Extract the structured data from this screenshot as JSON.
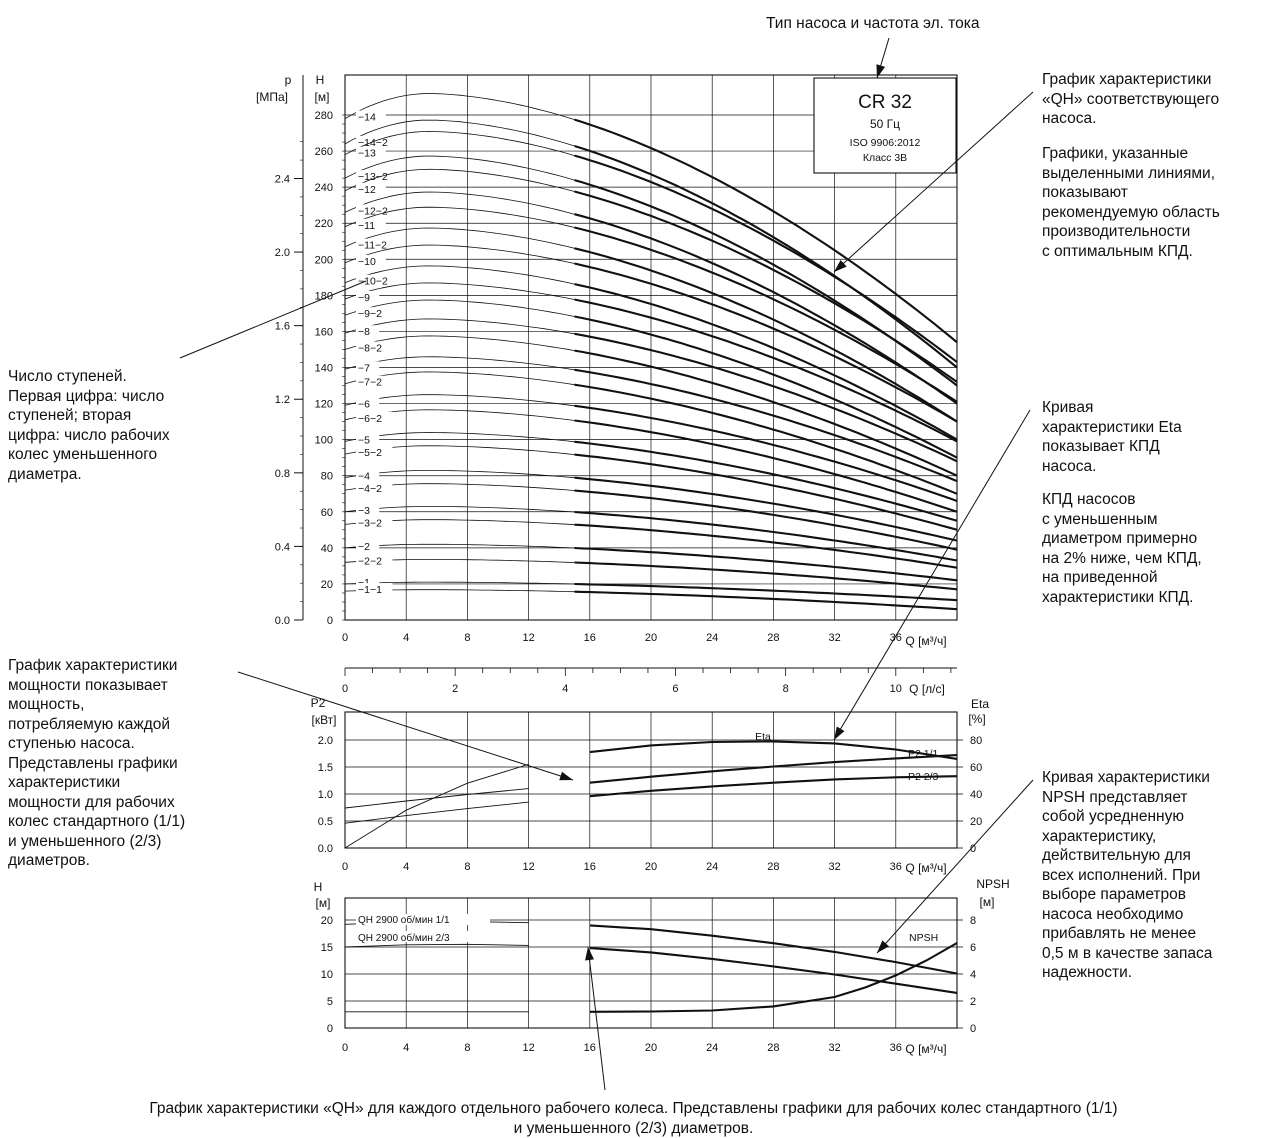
{
  "chart_data": [
    {
      "type": "line",
      "pump_box": {
        "model": "CR 32",
        "freq": "50 Гц",
        "iso": "ISO 9906:2012",
        "class": "Класс 3В"
      },
      "y_left_label": [
        "p",
        "[МПа]"
      ],
      "y_right_label": [
        "H",
        "[м]"
      ],
      "x_label": "Q [м³/ч]",
      "x_label_ls": "Q [л/с]",
      "xlim": [
        0,
        40
      ],
      "ylim": [
        0,
        280
      ],
      "x_ticks": [
        0,
        4,
        8,
        12,
        16,
        20,
        24,
        28,
        32,
        36
      ],
      "h_ticks": [
        0,
        20,
        40,
        60,
        80,
        100,
        120,
        140,
        160,
        180,
        200,
        220,
        240,
        260,
        280
      ],
      "p_ticks": [
        [
          "0.0",
          0
        ],
        [
          "0.4",
          40.8
        ],
        [
          "0.8",
          81.6
        ],
        [
          "1.2",
          122.4
        ],
        [
          "1.6",
          163.2
        ],
        [
          "2.0",
          204
        ],
        [
          "2.4",
          244.8
        ]
      ],
      "ls_ticks": [
        0,
        2,
        4,
        6,
        8,
        10
      ],
      "recommended_range": [
        15,
        40
      ],
      "series": [
        {
          "name": "−14",
          "shutoff": 278,
          "end": 154
        },
        {
          "name": "−14−2",
          "shutoff": 264,
          "end": 140
        },
        {
          "name": "−13",
          "shutoff": 258,
          "end": 143
        },
        {
          "name": "−13−2",
          "shutoff": 245,
          "end": 130
        },
        {
          "name": "−12",
          "shutoff": 238,
          "end": 132
        },
        {
          "name": "−12−2",
          "shutoff": 226,
          "end": 120
        },
        {
          "name": "−11",
          "shutoff": 218,
          "end": 121
        },
        {
          "name": "−11−2",
          "shutoff": 207,
          "end": 110
        },
        {
          "name": "−10",
          "shutoff": 198,
          "end": 110
        },
        {
          "name": "−10−2",
          "shutoff": 187,
          "end": 100
        },
        {
          "name": "−9",
          "shutoff": 178,
          "end": 99
        },
        {
          "name": "−9−2",
          "shutoff": 169,
          "end": 90
        },
        {
          "name": "−8",
          "shutoff": 159,
          "end": 88
        },
        {
          "name": "−8−2",
          "shutoff": 150,
          "end": 80
        },
        {
          "name": "−7",
          "shutoff": 139,
          "end": 77
        },
        {
          "name": "−7−2",
          "shutoff": 131,
          "end": 70
        },
        {
          "name": "−6",
          "shutoff": 119,
          "end": 66
        },
        {
          "name": "−6−2",
          "shutoff": 111,
          "end": 60
        },
        {
          "name": "−5",
          "shutoff": 99,
          "end": 55
        },
        {
          "name": "−5−2",
          "shutoff": 92,
          "end": 50
        },
        {
          "name": "−4",
          "shutoff": 79,
          "end": 44
        },
        {
          "name": "−4−2",
          "shutoff": 72,
          "end": 39
        },
        {
          "name": "−3",
          "shutoff": 60,
          "end": 33
        },
        {
          "name": "−3−2",
          "shutoff": 53,
          "end": 29
        },
        {
          "name": "−2",
          "shutoff": 40,
          "end": 22
        },
        {
          "name": "−2−2",
          "shutoff": 32,
          "end": 17
        },
        {
          "name": "−1",
          "shutoff": 20,
          "end": 11
        },
        {
          "name": "−1−1",
          "shutoff": 16,
          "end": 6
        }
      ]
    },
    {
      "type": "line",
      "y_left_label": [
        "P2",
        "[кВт]"
      ],
      "y_right_label": [
        "Eta",
        "[%]"
      ],
      "x_label": "Q [м³/ч]",
      "p2_ticks": [
        "0.0",
        "0.5",
        "1.0",
        "1.5",
        "2.0"
      ],
      "eta_ticks": [
        0,
        20,
        40,
        60,
        80
      ],
      "xlim": [
        0,
        40
      ],
      "series": [
        {
          "name": "Eta",
          "x": [
            0,
            4,
            8,
            12,
            16,
            20,
            24,
            28,
            32,
            36,
            40
          ],
          "y": [
            0,
            28,
            48,
            62,
            71,
            76,
            78.5,
            79,
            77.5,
            73,
            66
          ]
        },
        {
          "name": "P2 1/1",
          "x": [
            0,
            4,
            8,
            12,
            16,
            20,
            24,
            28,
            32,
            36,
            40
          ],
          "y": [
            0.74,
            0.87,
            0.99,
            1.1,
            1.21,
            1.32,
            1.42,
            1.51,
            1.59,
            1.66,
            1.72
          ]
        },
        {
          "name": "P2 2/3",
          "x": [
            0,
            4,
            8,
            12,
            16,
            20,
            24,
            28,
            32,
            36,
            40
          ],
          "y": [
            0.46,
            0.6,
            0.73,
            0.85,
            0.96,
            1.06,
            1.14,
            1.21,
            1.27,
            1.31,
            1.33
          ]
        }
      ]
    },
    {
      "type": "line",
      "y_left_label": [
        "H",
        "[м]"
      ],
      "y_right_label": [
        "NPSH",
        "[м]"
      ],
      "x_label": "Q [м³/ч]",
      "h_ticks": [
        0,
        5,
        10,
        15,
        20
      ],
      "npsh_ticks": [
        0,
        2,
        4,
        6,
        8
      ],
      "xlim": [
        0,
        40
      ],
      "series": [
        {
          "name": "QH 2900 об/мин 1/1",
          "x": [
            0,
            4,
            8,
            12,
            16,
            20,
            24,
            28,
            32,
            36,
            40
          ],
          "y": [
            19.2,
            19.6,
            19.7,
            19.5,
            19,
            18.3,
            17.1,
            15.7,
            14.1,
            12.2,
            10.1
          ]
        },
        {
          "name": "QH 2900 об/мин 2/3",
          "x": [
            0,
            4,
            8,
            12,
            16,
            20,
            24,
            28,
            32,
            36,
            40
          ],
          "y": [
            15,
            15.4,
            15.5,
            15.3,
            14.8,
            14,
            12.8,
            11.4,
            9.9,
            8.2,
            6.5
          ]
        },
        {
          "name": "NPSH",
          "x": [
            0,
            4,
            8,
            12,
            16,
            20,
            24,
            28,
            32,
            34,
            36,
            38,
            40
          ],
          "y": [
            1.2,
            1.2,
            1.2,
            1.2,
            1.2,
            1.22,
            1.3,
            1.6,
            2.3,
            3.0,
            3.9,
            5.0,
            6.3
          ]
        }
      ]
    }
  ],
  "annotations": {
    "top_type": "Тип насоса и частота эл. тока",
    "qh_curve": "График характеристики\n«QH» соответствующего\nнасоса.",
    "qh_bold": "Графики, указанные\nвыделенными линиями,\nпоказывают\nрекомендуемую область\nпроизводительности\nс оптимальным КПД.",
    "stages": "Число ступеней.\nПервая цифра: число\nступеней; вторая\nцифра: число рабочих\nколес уменьшенного\nдиаметра.",
    "eta_curve": "Кривая\nхарактеристики Eta\nпоказывает КПД\nнасоса.",
    "eta_reduced": "КПД насосов\nс уменьшенным\nдиаметром примерно\nна 2% ниже, чем КПД,\nна приведенной\nхарактеристики КПД.",
    "power_curve": "График характеристики\nмощности показывает\nмощность,\nпотребляемую каждой\nступенью насоса.\nПредставлены графики\nхарактеристики\nмощности для рабочих\nколес стандартного (1/1)\nи уменьшенного (2/3)\nдиаметров.",
    "npsh_curve": "Кривая характеристики\nNPSH представляет\nсобой усредненную\nхарактеристику,\nдействительную для\nвсех исполнений. При\nвыборе параметров\nнасоса необходимо\nприбавлять не менее\n0,5 м в качестве запаса\nнадежности.",
    "bottom": "График характеристики «QH» для каждого отдельного рабочего колеса. Представлены графики для рабочих колес стандартного (1/1)\nи уменьшенного (2/3) диаметров."
  }
}
